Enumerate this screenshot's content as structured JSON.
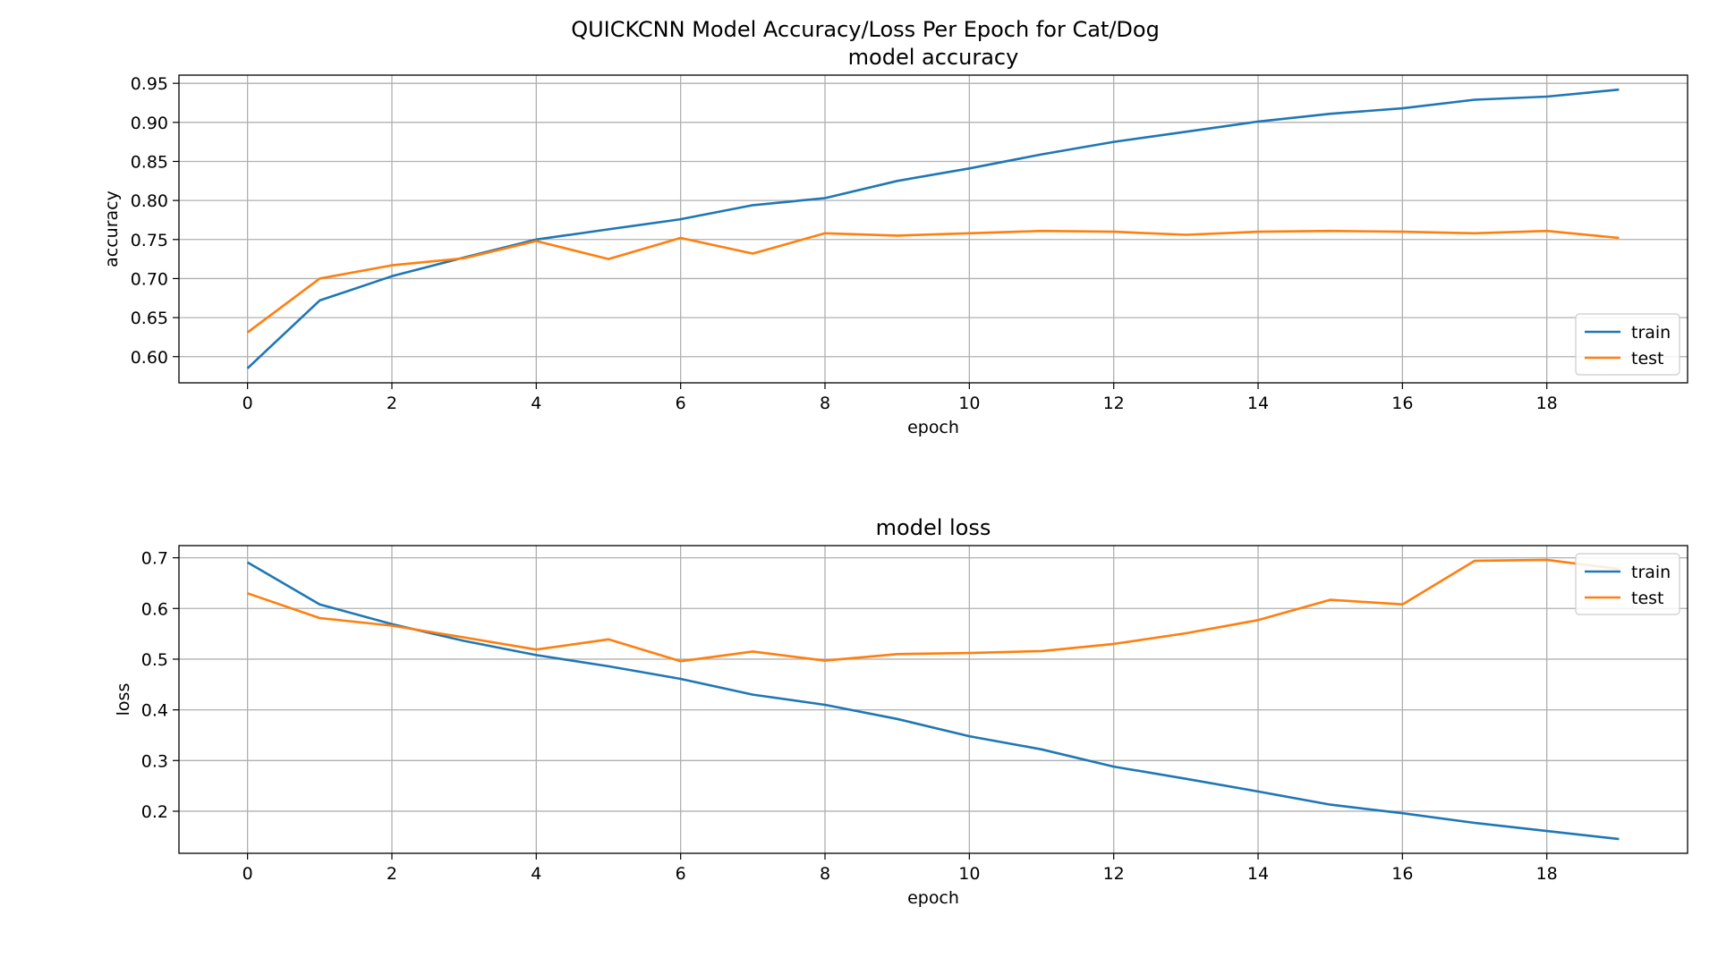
{
  "figure": {
    "suptitle": "QUICKCNN Model Accuracy/Loss Per Epoch for Cat/Dog"
  },
  "colors": {
    "train": "#1f77b4",
    "test": "#ff7f0e",
    "grid": "#b0b0b0"
  },
  "chart_data": [
    {
      "type": "line",
      "title": "model accuracy",
      "xlabel": "epoch",
      "ylabel": "accuracy",
      "xlim": [
        -0.95,
        19.95
      ],
      "ylim": [
        0.5665,
        0.9605
      ],
      "xticks": [
        0,
        2,
        4,
        6,
        8,
        10,
        12,
        14,
        16,
        18
      ],
      "yticks": [
        0.6,
        0.65,
        0.7,
        0.75,
        0.8,
        0.85,
        0.9,
        0.95
      ],
      "grid": true,
      "legend_position": "lower-right",
      "x": [
        0,
        1,
        2,
        3,
        4,
        5,
        6,
        7,
        8,
        9,
        10,
        11,
        12,
        13,
        14,
        15,
        16,
        17,
        18,
        19
      ],
      "series": [
        {
          "name": "train",
          "color": "#1f77b4",
          "values": [
            0.585,
            0.672,
            0.703,
            0.727,
            0.75,
            0.763,
            0.776,
            0.794,
            0.803,
            0.825,
            0.841,
            0.859,
            0.875,
            0.888,
            0.901,
            0.911,
            0.918,
            0.929,
            0.933,
            0.942
          ]
        },
        {
          "name": "test",
          "color": "#ff7f0e",
          "values": [
            0.631,
            0.7,
            0.717,
            0.726,
            0.748,
            0.725,
            0.752,
            0.732,
            0.758,
            0.755,
            0.758,
            0.761,
            0.76,
            0.756,
            0.76,
            0.761,
            0.76,
            0.758,
            0.761,
            0.752
          ]
        }
      ]
    },
    {
      "type": "line",
      "title": "model loss",
      "xlabel": "epoch",
      "ylabel": "loss",
      "xlim": [
        -0.95,
        19.95
      ],
      "ylim": [
        0.117,
        0.724
      ],
      "xticks": [
        0,
        2,
        4,
        6,
        8,
        10,
        12,
        14,
        16,
        18
      ],
      "yticks": [
        0.2,
        0.3,
        0.4,
        0.5,
        0.6,
        0.7
      ],
      "grid": true,
      "legend_position": "upper-right",
      "x": [
        0,
        1,
        2,
        3,
        4,
        5,
        6,
        7,
        8,
        9,
        10,
        11,
        12,
        13,
        14,
        15,
        16,
        17,
        18,
        19
      ],
      "series": [
        {
          "name": "train",
          "color": "#1f77b4",
          "values": [
            0.691,
            0.608,
            0.569,
            0.536,
            0.508,
            0.486,
            0.461,
            0.43,
            0.41,
            0.382,
            0.348,
            0.322,
            0.288,
            0.264,
            0.239,
            0.213,
            0.196,
            0.177,
            0.161,
            0.145
          ]
        },
        {
          "name": "test",
          "color": "#ff7f0e",
          "values": [
            0.63,
            0.581,
            0.566,
            0.543,
            0.519,
            0.539,
            0.496,
            0.515,
            0.497,
            0.51,
            0.512,
            0.516,
            0.53,
            0.551,
            0.577,
            0.617,
            0.608,
            0.694,
            0.696,
            0.678
          ]
        }
      ]
    }
  ]
}
